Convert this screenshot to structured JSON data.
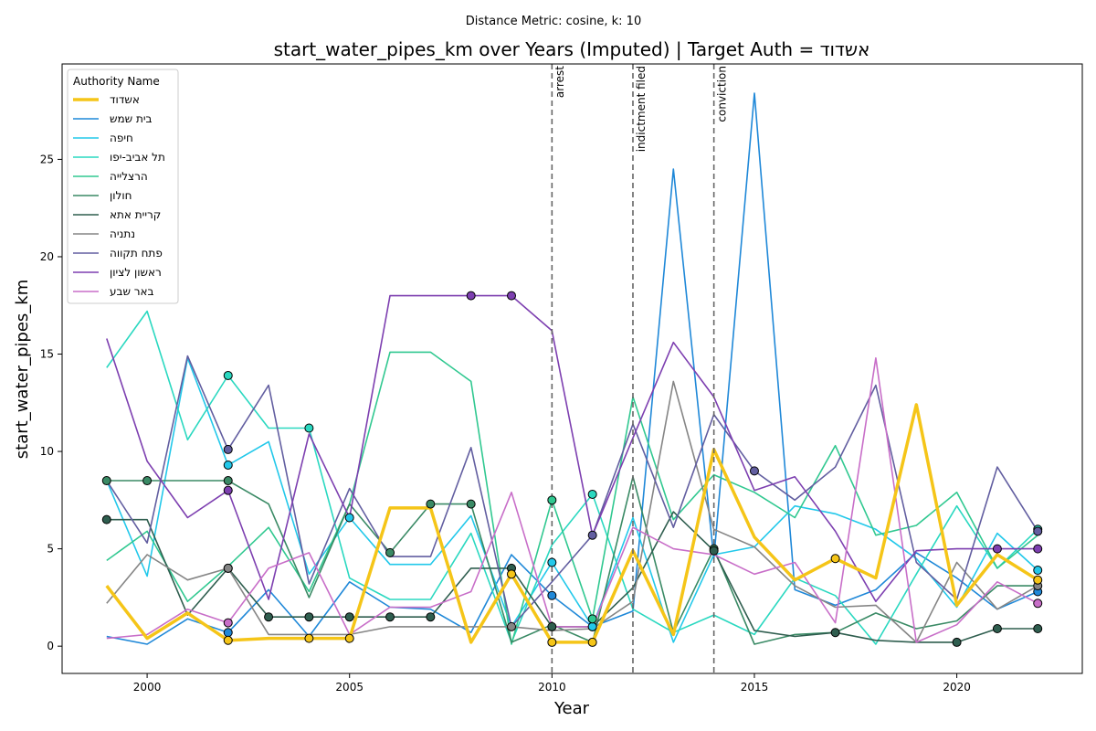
{
  "chart_data": {
    "type": "line",
    "suptitle": "Distance Metric: cosine, k: 10",
    "title": "start_water_pipes_km over Years (Imputed) | Target Auth = אשדוד",
    "xlabel": "Year",
    "ylabel": "start_water_pipes_km",
    "xlim": [
      1997.9,
      2023.1
    ],
    "ylim": [
      -1.4,
      29.9
    ],
    "xticks": [
      2000,
      2005,
      2010,
      2015,
      2020
    ],
    "yticks": [
      0,
      5,
      10,
      15,
      20,
      25
    ],
    "grid": false,
    "legend": {
      "title": "Authority Name",
      "placement": "top-left"
    },
    "x": [
      1999,
      2000,
      2001,
      2002,
      2003,
      2004,
      2005,
      2006,
      2007,
      2008,
      2009,
      2010,
      2011,
      2012,
      2013,
      2014,
      2015,
      2016,
      2017,
      2018,
      2019,
      2020,
      2021,
      2022
    ],
    "events": [
      {
        "year": 2010,
        "label": "arrest"
      },
      {
        "year": 2012,
        "label": "indictment filed"
      },
      {
        "year": 2014,
        "label": "conviction"
      }
    ],
    "series": [
      {
        "name": "אשדוד",
        "color": "#f5c518",
        "target": true,
        "values": [
          3.1,
          0.4,
          1.7,
          0.3,
          0.4,
          0.4,
          0.4,
          7.1,
          7.1,
          0.2,
          3.7,
          0.2,
          0.2,
          4.9,
          0.6,
          10.1,
          5.6,
          3.4,
          4.5,
          3.5,
          12.4,
          2.1,
          4.7,
          3.4
        ],
        "markers": [
          2002,
          2004,
          2005,
          2009,
          2010,
          2011,
          2017,
          2022
        ]
      },
      {
        "name": "בית שמש",
        "color": "#1f88d8",
        "values": [
          0.5,
          0.1,
          1.4,
          0.7,
          2.9,
          0.5,
          3.3,
          2.0,
          1.9,
          0.7,
          4.7,
          2.6,
          1.0,
          1.8,
          24.5,
          4.5,
          28.4,
          2.9,
          2.1,
          2.9,
          4.8,
          3.5,
          1.9,
          2.8
        ],
        "markers": [
          2002,
          2010,
          2011,
          2022
        ]
      },
      {
        "name": "חיפה",
        "color": "#22c8ea",
        "values": [
          8.5,
          3.6,
          14.8,
          9.3,
          10.5,
          3.7,
          6.6,
          4.2,
          4.2,
          6.7,
          1.0,
          4.3,
          1.0,
          6.6,
          0.2,
          4.7,
          5.1,
          7.2,
          6.8,
          6.0,
          4.5,
          2.0,
          5.8,
          3.9
        ],
        "markers": [
          2002,
          2005,
          2010,
          2011,
          2022
        ]
      },
      {
        "name": "תל אביב-יפו",
        "color": "#2ad8c0",
        "values": [
          14.3,
          17.2,
          10.6,
          13.9,
          11.2,
          11.2,
          3.5,
          2.4,
          2.4,
          5.8,
          0.2,
          5.2,
          7.8,
          1.9,
          0.7,
          1.6,
          0.6,
          3.5,
          2.6,
          0.1,
          3.7,
          7.2,
          4.0,
          6.0
        ],
        "markers": [
          2002,
          2004,
          2011,
          2022
        ]
      },
      {
        "name": "הרצלייה",
        "color": "#30c890",
        "values": [
          4.4,
          5.9,
          2.3,
          4.1,
          6.1,
          2.8,
          7.3,
          15.1,
          15.1,
          13.6,
          0.1,
          7.5,
          1.4,
          12.8,
          6.5,
          8.8,
          7.9,
          6.6,
          10.3,
          5.7,
          6.2,
          7.9,
          4.0,
          5.7
        ],
        "markers": [
          2010,
          2011
        ]
      },
      {
        "name": "חולון",
        "color": "#3a8a65",
        "values": [
          8.5,
          8.5,
          8.5,
          8.5,
          7.3,
          2.5,
          7.3,
          4.8,
          7.3,
          7.3,
          0.2,
          1.1,
          0.2,
          8.7,
          0.7,
          5.0,
          0.1,
          0.6,
          0.7,
          1.7,
          0.9,
          1.3,
          3.1,
          3.1
        ],
        "markers": [
          1999,
          2000,
          2002,
          2006,
          2007,
          2008,
          2014
        ]
      },
      {
        "name": "קריית אתא",
        "color": "#2f5e4f",
        "values": [
          6.5,
          6.5,
          1.6,
          4.0,
          1.5,
          1.5,
          1.5,
          1.5,
          1.5,
          4.0,
          4.0,
          1.0,
          1.0,
          3.0,
          6.9,
          4.9,
          0.8,
          0.5,
          0.7,
          0.3,
          0.2,
          0.2,
          0.9,
          0.9
        ],
        "markers": [
          1999,
          2002,
          2003,
          2004,
          2005,
          2006,
          2007,
          2009,
          2010,
          2014,
          2017,
          2020,
          2021,
          2022
        ]
      },
      {
        "name": "נתניה",
        "color": "#858585",
        "values": [
          2.2,
          4.7,
          3.4,
          4.0,
          0.6,
          0.6,
          0.6,
          1.0,
          1.0,
          1.0,
          1.0,
          0.8,
          0.9,
          2.3,
          13.6,
          6.0,
          5.1,
          3.1,
          2.0,
          2.1,
          0.2,
          4.3,
          1.9,
          3.1
        ],
        "markers": [
          2002,
          2009,
          2022
        ]
      },
      {
        "name": "פתח תקווה",
        "color": "#625ea0",
        "values": [
          8.5,
          5.3,
          14.9,
          10.1,
          13.4,
          3.2,
          8.1,
          4.6,
          4.6,
          10.2,
          1.0,
          3.3,
          5.7,
          11.4,
          6.1,
          11.9,
          9.0,
          7.5,
          9.2,
          13.4,
          4.3,
          2.4,
          9.2,
          5.9
        ],
        "markers": [
          2002,
          2011,
          2015,
          2022
        ]
      },
      {
        "name": "ראשון לציון",
        "color": "#7d3fb0",
        "values": [
          15.8,
          9.5,
          6.6,
          8.0,
          2.4,
          10.9,
          6.6,
          18.0,
          18.0,
          18.0,
          18.0,
          16.2,
          5.7,
          10.7,
          15.6,
          12.8,
          8.0,
          8.7,
          5.9,
          2.3,
          4.9,
          5.0,
          5.0,
          5.0
        ],
        "markers": [
          2002,
          2008,
          2009,
          2021,
          2022
        ]
      },
      {
        "name": "באר שבע",
        "color": "#c86ec8",
        "values": [
          0.4,
          0.6,
          1.9,
          1.2,
          4.0,
          4.8,
          0.6,
          2.0,
          2.0,
          2.8,
          7.9,
          1.0,
          1.0,
          6.1,
          5.0,
          4.7,
          3.7,
          4.3,
          1.2,
          14.8,
          0.2,
          1.1,
          3.3,
          2.2
        ],
        "markers": [
          2002,
          2022
        ]
      }
    ]
  }
}
